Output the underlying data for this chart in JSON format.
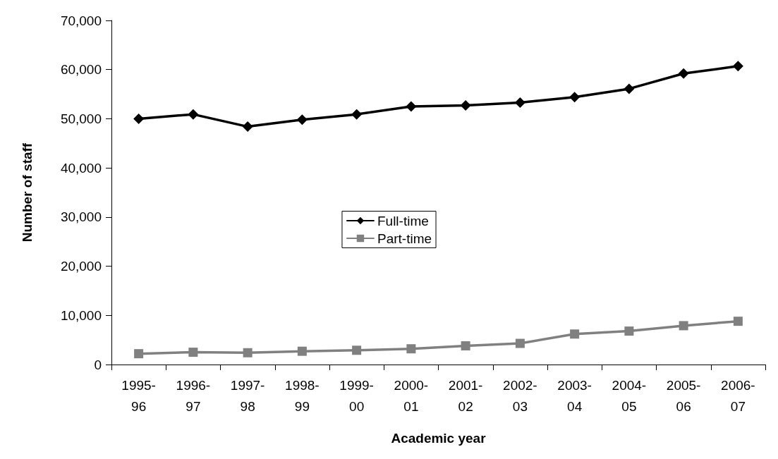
{
  "chart_data": {
    "type": "line",
    "xlabel": "Academic year",
    "ylabel": "Number of staff",
    "categories": [
      "1995-\n96",
      "1996-\n97",
      "1997-\n98",
      "1998-\n99",
      "1999-\n00",
      "2000-\n01",
      "2001-\n02",
      "2002-\n03",
      "2003-\n04",
      "2004-\n05",
      "2005-\n06",
      "2006-\n07"
    ],
    "series": [
      {
        "name": "Full-time",
        "color": "#000000",
        "marker": "diamond",
        "values": [
          50000,
          50900,
          48400,
          49800,
          50900,
          52500,
          52700,
          53300,
          54400,
          56100,
          59200,
          60700
        ]
      },
      {
        "name": "Part-time",
        "color": "#808080",
        "marker": "square",
        "values": [
          2200,
          2500,
          2400,
          2700,
          2900,
          3200,
          3800,
          4300,
          6200,
          6800,
          7900,
          8800
        ]
      }
    ],
    "ylim": [
      0,
      70000
    ],
    "yticks": [
      0,
      {
        "value": 10000,
        "label": "10,000"
      },
      {
        "value": 20000,
        "label": "20,000"
      },
      {
        "value": 30000,
        "label": "30,000"
      },
      {
        "value": 40000,
        "label": "40,000"
      },
      {
        "value": 50000,
        "label": "50,000"
      },
      {
        "value": 60000,
        "label": "60,000"
      },
      {
        "value": 70000,
        "label": "70,000"
      }
    ],
    "grid": false,
    "legend": "center",
    "line_style": "solid"
  }
}
